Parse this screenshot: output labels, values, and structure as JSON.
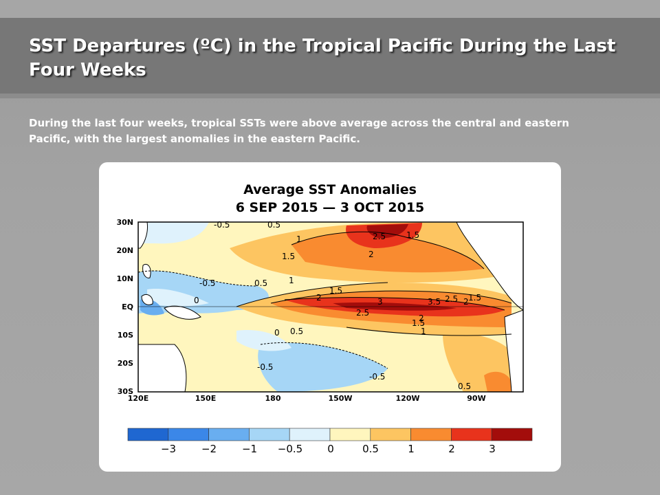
{
  "slide": {
    "title": "SST Departures (ºC) in the Tropical Pacific During the Last Four Weeks",
    "body": "During the last four weeks, tropical SSTs were above average across the central and eastern Pacific, with the largest anomalies in the eastern Pacific."
  },
  "figure": {
    "title_line1": "Average SST Anomalies",
    "title_line2": "6 SEP 2015 — 3 OCT 2015",
    "lat_labels": [
      "30N",
      "20N",
      "10N",
      "EQ",
      "10S",
      "20S",
      "30S"
    ],
    "lon_labels": [
      "120E",
      "150E",
      "180",
      "150W",
      "120W",
      "90W"
    ],
    "contour_labels": [
      "-0.5",
      "0.5",
      "1",
      "1.5",
      "2.5",
      "1.5",
      "2",
      "-0.5",
      "0.5",
      "0",
      "1",
      "1.5",
      "2",
      "3",
      "3.5",
      "2.5",
      "2",
      "1.5",
      "2.5",
      "1.5",
      "2",
      "1",
      "0",
      "0.5",
      "-0.5",
      "-0.5",
      "0.5"
    ],
    "colorbar": {
      "colors": [
        "#1f67d1",
        "#3b87e8",
        "#69aef0",
        "#a6d6f6",
        "#dff2fc",
        "#fff6be",
        "#fdc561",
        "#f98b30",
        "#e8331c",
        "#a30d0b"
      ],
      "tick_labels": [
        "−3",
        "−2",
        "−1",
        "−0.5",
        "0",
        "0.5",
        "1",
        "2",
        "3"
      ]
    }
  }
}
